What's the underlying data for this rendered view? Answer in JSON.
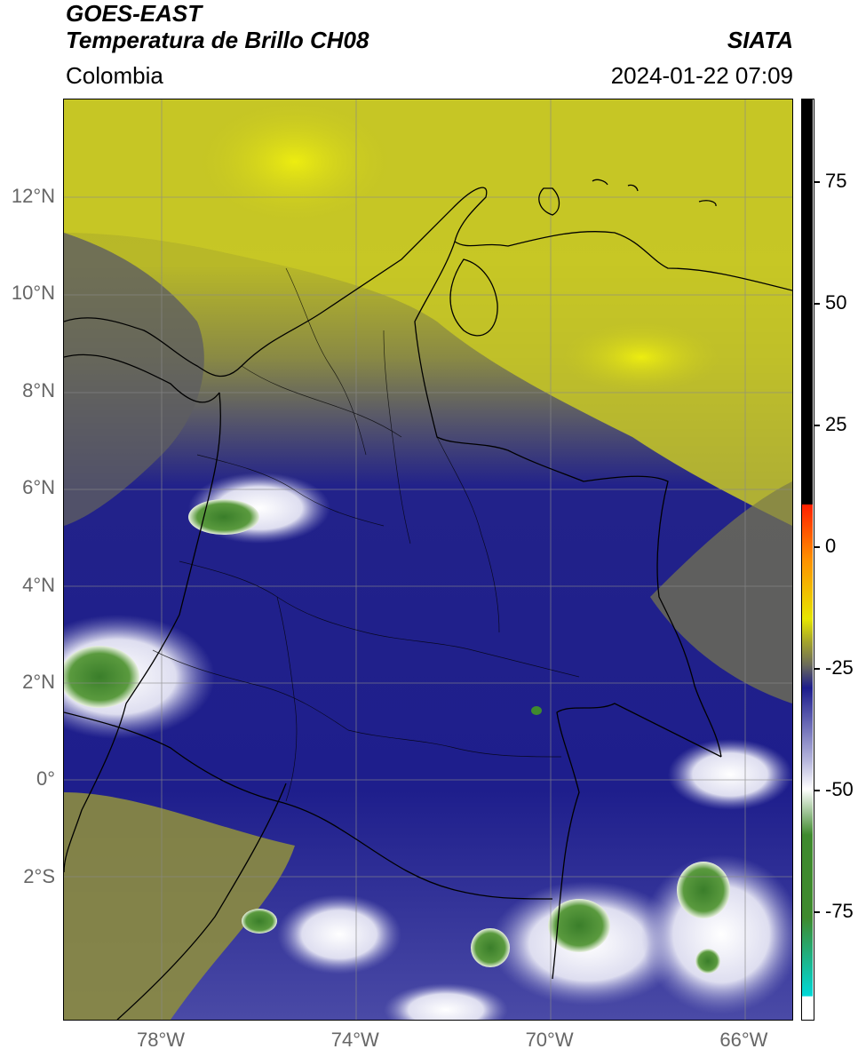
{
  "header": {
    "satellite": "GOES-EAST",
    "product": "Temperatura de Brillo CH08",
    "region": "Colombia",
    "source": "SIATA",
    "datetime": "2024-01-22 07:09"
  },
  "map": {
    "lat_labels": [
      {
        "label": "12°N",
        "value": 12
      },
      {
        "label": "10°N",
        "value": 10
      },
      {
        "label": "8°N",
        "value": 8
      },
      {
        "label": "6°N",
        "value": 6
      },
      {
        "label": "4°N",
        "value": 4
      },
      {
        "label": "2°N",
        "value": 2
      },
      {
        "label": "0°",
        "value": 0
      },
      {
        "label": "2°S",
        "value": -2
      }
    ],
    "lon_labels": [
      {
        "label": "78°W",
        "value": -78
      },
      {
        "label": "74°W",
        "value": -74
      },
      {
        "label": "70°W",
        "value": -70
      },
      {
        "label": "66°W",
        "value": -66
      }
    ]
  },
  "colorbar": {
    "ticks": [
      {
        "label": "75",
        "value": 75
      },
      {
        "label": "50",
        "value": 50
      },
      {
        "label": "25",
        "value": 25
      },
      {
        "label": "0",
        "value": 0
      },
      {
        "label": "-25",
        "value": -25
      },
      {
        "label": "-50",
        "value": -50
      },
      {
        "label": "-75",
        "value": -75
      }
    ],
    "colors": {
      "top_black": "#000000",
      "warm_red": "#ff2000",
      "warm_orange": "#ff9000",
      "yellow": "#e6e600",
      "olive": "#a4a42c",
      "gray": "#6c6c5a",
      "navy": "#1c1c8c",
      "lavender": "#b8b8de",
      "white": "#ffffff",
      "green": "#3f8a2e",
      "cyan": "#00d8d8"
    }
  }
}
